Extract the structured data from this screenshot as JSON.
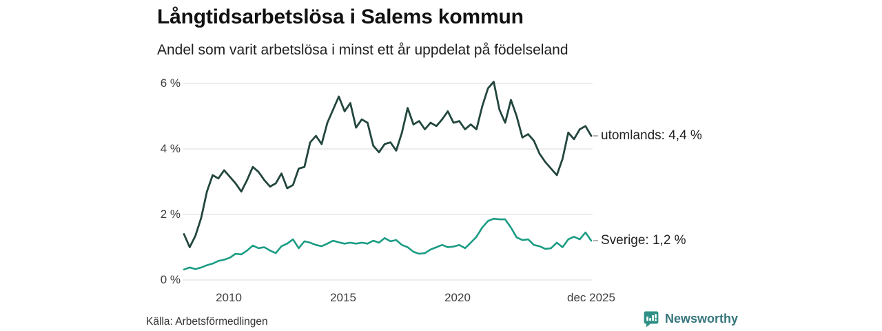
{
  "title": "Långtidsarbetslösa i Salems kommun",
  "subtitle": "Andel som varit arbetslösa i minst ett år uppdelat på födelseland",
  "source": "Källa: Arbetsförmedlingen",
  "branding": {
    "name": "Newsworthy",
    "icon": "newsworthy-chart-bubble-icon",
    "icon_color": "#2E9087",
    "text_color": "#35767C"
  },
  "chart_data": {
    "type": "line",
    "x_start": 2008.0,
    "x_end": 2025.92,
    "x_interval": "quarterly",
    "xticks": [
      "2010",
      "2015",
      "2020",
      "dec 2025"
    ],
    "yticks": [
      "0 %",
      "2 %",
      "4 %",
      "6 %"
    ],
    "ytick_values": [
      0,
      2,
      4,
      6
    ],
    "ylim": [
      0,
      6.3
    ],
    "grid": "horizontal",
    "legend_position": "right-of-line-end",
    "colors": {
      "gridline": "#e0e0e0",
      "axis_text": "#3d3d3d"
    },
    "series": [
      {
        "name": "utomlands",
        "label": "utomlands: 4,4 %",
        "end_value": "4,4 %",
        "color": "#22463E",
        "stroke_width": 2.8,
        "values": [
          1.4,
          1.0,
          1.35,
          1.9,
          2.7,
          3.2,
          3.1,
          3.35,
          3.15,
          2.95,
          2.7,
          3.05,
          3.45,
          3.3,
          3.05,
          2.85,
          2.95,
          3.25,
          2.8,
          2.9,
          3.4,
          3.45,
          4.2,
          4.4,
          4.15,
          4.8,
          5.2,
          5.6,
          5.15,
          5.4,
          4.65,
          4.9,
          4.8,
          4.1,
          3.9,
          4.15,
          4.2,
          3.95,
          4.5,
          5.25,
          4.75,
          4.85,
          4.6,
          4.8,
          4.7,
          4.9,
          5.15,
          4.8,
          4.85,
          4.6,
          4.75,
          4.6,
          5.3,
          5.85,
          6.05,
          5.2,
          4.8,
          5.5,
          5.0,
          4.35,
          4.45,
          4.25,
          3.85,
          3.6,
          3.4,
          3.2,
          3.7,
          4.5,
          4.3,
          4.6,
          4.7,
          4.4
        ]
      },
      {
        "name": "Sverige",
        "label": "Sverige: 1,2 %",
        "end_value": "1,2 %",
        "color": "#1A9C84",
        "stroke_width": 2.6,
        "values": [
          0.32,
          0.38,
          0.33,
          0.38,
          0.45,
          0.5,
          0.58,
          0.62,
          0.68,
          0.8,
          0.78,
          0.9,
          1.05,
          0.97,
          1.0,
          0.9,
          0.82,
          1.03,
          1.11,
          1.24,
          0.97,
          1.18,
          1.14,
          1.07,
          1.03,
          1.11,
          1.2,
          1.15,
          1.11,
          1.14,
          1.11,
          1.14,
          1.11,
          1.2,
          1.14,
          1.28,
          1.18,
          1.22,
          1.07,
          1.0,
          0.86,
          0.8,
          0.82,
          0.93,
          1.0,
          1.07,
          1.0,
          1.02,
          1.07,
          0.97,
          1.14,
          1.32,
          1.6,
          1.8,
          1.87,
          1.85,
          1.85,
          1.6,
          1.3,
          1.22,
          1.24,
          1.07,
          1.03,
          0.95,
          0.97,
          1.14,
          1.0,
          1.24,
          1.32,
          1.24,
          1.45,
          1.2
        ]
      }
    ]
  }
}
